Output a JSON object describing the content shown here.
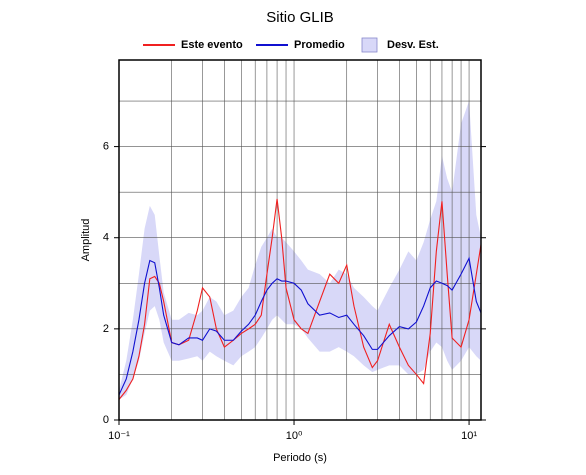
{
  "chart_data": {
    "type": "line",
    "title": "Sitio GLIB",
    "xlabel": "Periodo (s)",
    "ylabel": "Amplitud",
    "xscale": "log",
    "grid": true,
    "legend": "top",
    "x": [
      0.1,
      0.11,
      0.12,
      0.13,
      0.14,
      0.15,
      0.16,
      0.17,
      0.18,
      0.2,
      0.22,
      0.25,
      0.28,
      0.3,
      0.33,
      0.36,
      0.4,
      0.45,
      0.5,
      0.55,
      0.6,
      0.65,
      0.7,
      0.75,
      0.8,
      0.85,
      0.9,
      1.0,
      1.1,
      1.2,
      1.4,
      1.6,
      1.8,
      2.0,
      2.2,
      2.5,
      2.8,
      3.0,
      3.5,
      4.0,
      4.5,
      5.0,
      5.5,
      6.0,
      6.5,
      7.0,
      7.5,
      8.0,
      9.0,
      10,
      11,
      11.7
    ],
    "band": {
      "name": "Desv. Est.",
      "color": "#d8d8f8",
      "upper": [
        0.65,
        1.3,
        2.2,
        3.2,
        4.2,
        4.7,
        4.5,
        3.6,
        2.8,
        2.2,
        2.2,
        2.35,
        2.3,
        2.4,
        2.7,
        2.6,
        2.3,
        2.4,
        2.7,
        2.9,
        3.4,
        3.8,
        4.0,
        4.2,
        4.0,
        4.0,
        3.9,
        3.7,
        3.5,
        3.3,
        3.2,
        3.0,
        3.3,
        3.2,
        2.9,
        2.7,
        2.5,
        2.4,
        2.9,
        3.3,
        3.7,
        3.5,
        3.9,
        4.4,
        4.8,
        5.8,
        5.3,
        5.0,
        6.5,
        7.0,
        4.5,
        4.0
      ],
      "lower": [
        0.45,
        0.55,
        0.9,
        1.3,
        1.9,
        2.4,
        2.5,
        2.2,
        1.7,
        1.3,
        1.3,
        1.35,
        1.4,
        1.3,
        1.5,
        1.4,
        1.3,
        1.2,
        1.4,
        1.5,
        1.6,
        1.8,
        2.0,
        2.2,
        2.3,
        2.2,
        2.1,
        2.1,
        2.0,
        1.8,
        1.5,
        1.5,
        1.6,
        1.5,
        1.4,
        1.2,
        1.05,
        1.1,
        1.2,
        1.2,
        1.0,
        1.0,
        1.1,
        1.5,
        1.7,
        1.6,
        1.3,
        1.1,
        1.3,
        1.6,
        1.4,
        1.3
      ]
    },
    "series": [
      {
        "name": "Este evento",
        "color": "#f02020",
        "values": [
          0.45,
          0.65,
          0.9,
          1.4,
          2.1,
          3.1,
          3.15,
          3.0,
          2.6,
          1.7,
          1.65,
          1.75,
          2.4,
          2.9,
          2.7,
          2.0,
          1.6,
          1.75,
          1.9,
          2.0,
          2.1,
          2.3,
          3.2,
          4.0,
          4.85,
          4.0,
          2.9,
          2.2,
          2.0,
          1.9,
          2.6,
          3.2,
          3.0,
          3.4,
          2.5,
          1.6,
          1.15,
          1.3,
          2.1,
          1.6,
          1.2,
          1.0,
          0.8,
          1.9,
          3.7,
          4.8,
          3.2,
          1.8,
          1.6,
          2.2,
          3.2,
          3.85
        ]
      },
      {
        "name": "Promedio",
        "color": "#1010d0",
        "values": [
          0.55,
          0.9,
          1.5,
          2.2,
          3.0,
          3.5,
          3.45,
          2.9,
          2.3,
          1.7,
          1.65,
          1.8,
          1.8,
          1.75,
          2.0,
          1.95,
          1.75,
          1.75,
          1.95,
          2.1,
          2.3,
          2.6,
          2.85,
          3.0,
          3.1,
          3.05,
          3.05,
          3.0,
          2.85,
          2.55,
          2.3,
          2.35,
          2.25,
          2.3,
          2.1,
          1.85,
          1.55,
          1.55,
          1.85,
          2.05,
          2.0,
          2.15,
          2.5,
          2.9,
          3.05,
          3.0,
          2.95,
          2.85,
          3.2,
          3.55,
          2.6,
          2.35
        ]
      }
    ],
    "xlim": [
      0.1,
      11.7
    ],
    "ylim": [
      0,
      7.9
    ],
    "xticks": [
      {
        "value": 0.1,
        "label": "10⁻¹"
      },
      {
        "value": 1,
        "label": "10⁰"
      },
      {
        "value": 10,
        "label": "10¹"
      }
    ],
    "xminor": [
      0.2,
      0.3,
      0.4,
      0.5,
      0.6,
      0.7,
      0.8,
      0.9,
      2,
      3,
      4,
      5,
      6,
      7,
      8,
      9
    ],
    "yticks": [
      0,
      2,
      4,
      6
    ],
    "yminor": [
      1,
      3,
      5,
      7
    ]
  }
}
